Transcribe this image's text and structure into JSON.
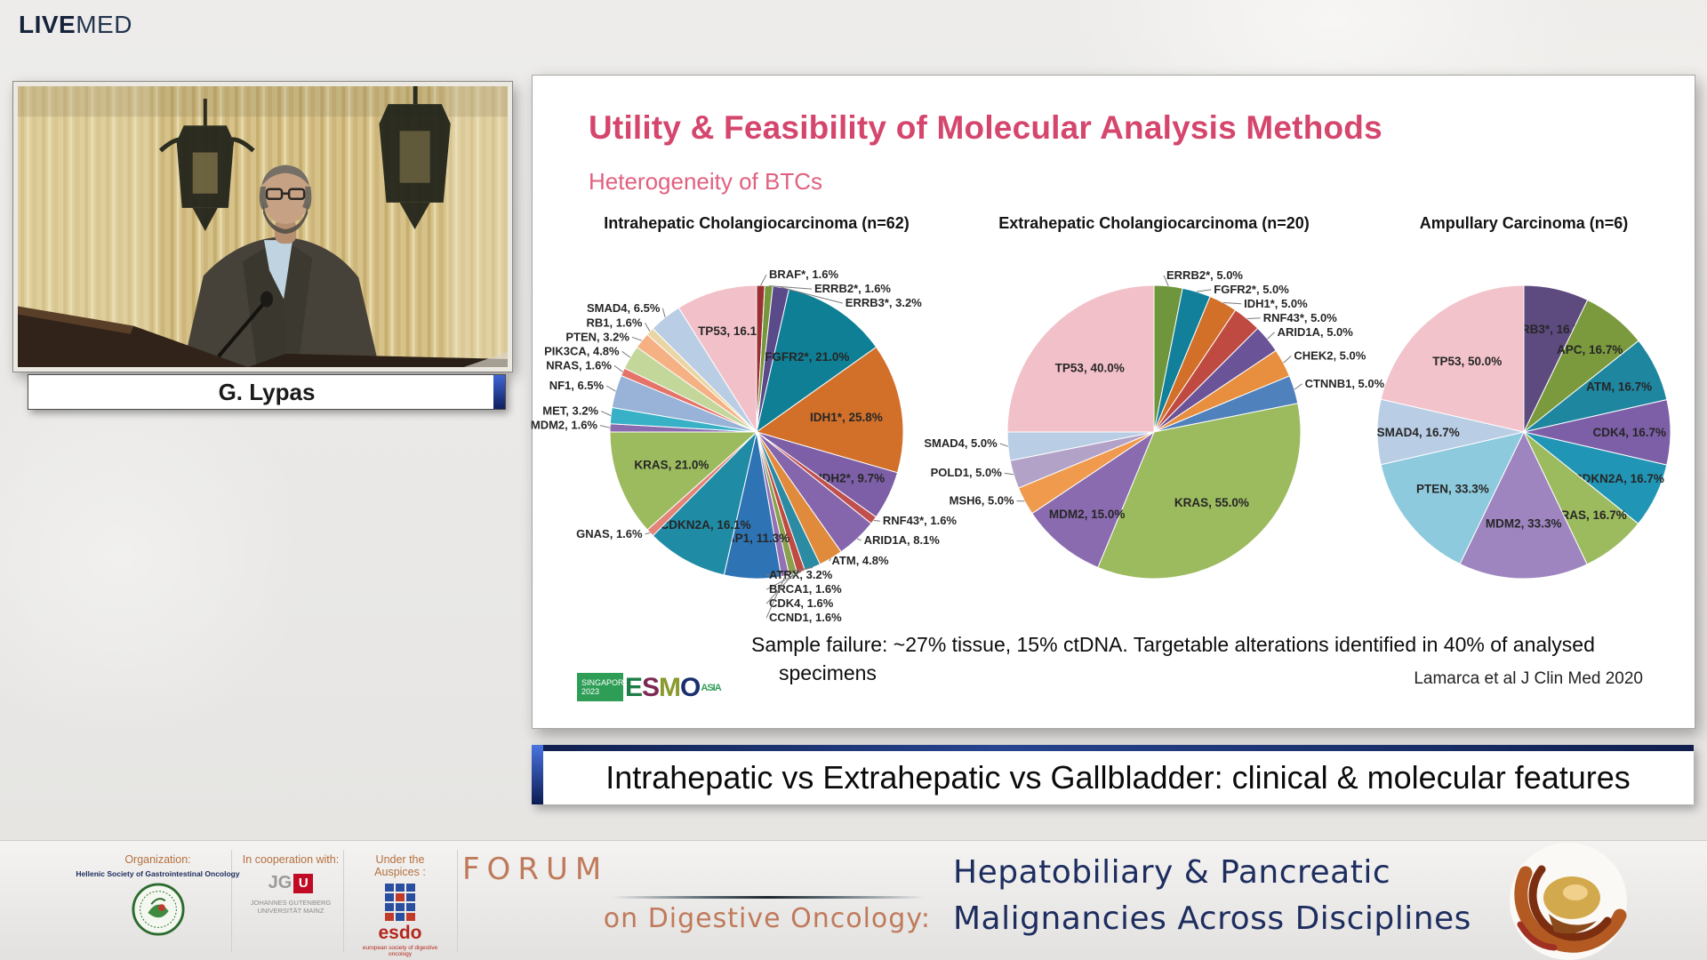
{
  "header": {
    "logo_bold": "LIVE",
    "logo_light": "MED"
  },
  "speaker": {
    "name": "G. Lypas"
  },
  "slide": {
    "title": "Utility & Feasibility of Molecular Analysis Methods",
    "subtitle": "Heterogeneity of BTCs",
    "footnote_line1": "Sample failure: ~27% tissue, 15% ctDNA. Targetable alterations identified in 40% of analysed",
    "footnote_line2": "specimens",
    "citation": "Lamarca et al J Clin Med 2020",
    "esmo_logo": {
      "place": "SINGAPORE",
      "year": "2023",
      "box_color": "#2e9e57",
      "letters": [
        {
          "ch": "E",
          "color": "#1e7d46"
        },
        {
          "ch": "S",
          "color": "#7c2a52"
        },
        {
          "ch": "M",
          "color": "#8a9a2e"
        },
        {
          "ch": "O",
          "color": "#1b2f6e"
        }
      ],
      "region": "ASIA",
      "region_color": "#2e9e57"
    }
  },
  "chart_data": [
    {
      "type": "pie",
      "title": "Intrahepatic Cholangiocarcinoma (n=62)",
      "n": 62,
      "start_angle": -90,
      "direction": "clockwise",
      "slices": [
        {
          "label": "BRAF*",
          "text": "BRAF*, 1.6%",
          "value": 1.6,
          "color": "#9c2f34"
        },
        {
          "label": "ERRB2*",
          "text": "ERRB2*, 1.6%",
          "value": 1.6,
          "color": "#76963c"
        },
        {
          "label": "ERRB3*",
          "text": "ERRB3*, 3.2%",
          "value": 3.2,
          "color": "#5a4a8a"
        },
        {
          "label": "FGFR2*",
          "text": "FGFR2*, 21.0%",
          "value": 21.0,
          "color": "#0f7f96"
        },
        {
          "label": "IDH1*",
          "text": "IDH1*, 25.8%",
          "value": 25.8,
          "color": "#d2702a"
        },
        {
          "label": "IDH2*",
          "text": "IDH2*, 9.7%",
          "value": 9.7,
          "color": "#7d5fa8"
        },
        {
          "label": "RNF43*",
          "text": "RNF43*, 1.6%",
          "value": 1.6,
          "color": "#c0504d"
        },
        {
          "label": "ARID1A",
          "text": "ARID1A, 8.1%",
          "value": 8.1,
          "color": "#8566ad"
        },
        {
          "label": "ATM",
          "text": "ATM, 4.8%",
          "value": 4.8,
          "color": "#e08a3c"
        },
        {
          "label": "ATRX",
          "text": "ATRX, 3.2%",
          "value": 3.2,
          "color": "#2b8ba3"
        },
        {
          "label": "BRCA1",
          "text": "BRCA1, 1.6%",
          "value": 1.6,
          "color": "#bf4a42"
        },
        {
          "label": "CDK4",
          "text": "CDK4, 1.6%",
          "value": 1.6,
          "color": "#89a14e"
        },
        {
          "label": "CCND1",
          "text": "CCND1, 1.6%",
          "value": 1.6,
          "color": "#9271b5"
        },
        {
          "label": "BAP1",
          "text": "BAP1, 11.3%",
          "value": 11.3,
          "color": "#2e74b5"
        },
        {
          "label": "CDKN2A",
          "text": "CDKN2A, 16.1%",
          "value": 16.1,
          "color": "#1f8ba5"
        },
        {
          "label": "GNAS",
          "text": "GNAS, 1.6%",
          "value": 1.6,
          "color": "#e2847a"
        },
        {
          "label": "KRAS",
          "text": "KRAS, 21.0%",
          "value": 21.0,
          "color": "#9cba5e"
        },
        {
          "label": "MDM2",
          "text": "MDM2, 1.6%",
          "value": 1.6,
          "color": "#8b6bb0"
        },
        {
          "label": "MET",
          "text": "MET, 3.2%",
          "value": 3.2,
          "color": "#38b1c7"
        },
        {
          "label": "NF1",
          "text": "NF1, 6.5%",
          "value": 6.5,
          "color": "#98b2d8"
        },
        {
          "label": "NRAS",
          "text": "NRAS, 1.6%",
          "value": 1.6,
          "color": "#e57368"
        },
        {
          "label": "PIK3CA",
          "text": "PIK3CA, 4.8%",
          "value": 4.8,
          "color": "#c4d79b"
        },
        {
          "label": "PTEN",
          "text": "PTEN, 3.2%",
          "value": 3.2,
          "color": "#f5b183"
        },
        {
          "label": "RB1",
          "text": "RB1, 1.6%",
          "value": 1.6,
          "color": "#ead6a5"
        },
        {
          "label": "SMAD4",
          "text": "SMAD4, 6.5%",
          "value": 6.5,
          "color": "#b9cde5"
        },
        {
          "label": "TP53",
          "text": "TP53, 16.1",
          "value": 16.1,
          "color": "#f2c0c8"
        }
      ]
    },
    {
      "type": "pie",
      "title": "Extrahepatic Cholangiocarcinoma (n=20)",
      "n": 20,
      "start_angle": -90,
      "direction": "clockwise",
      "slices": [
        {
          "label": "ERRB2*",
          "text": "ERRB2*, 5.0%",
          "value": 5,
          "color": "#6f963d"
        },
        {
          "label": "FGFR2*",
          "text": "FGFR2*, 5.0%",
          "value": 5,
          "color": "#12809a"
        },
        {
          "label": "IDH1*",
          "text": "IDH1*, 5.0%",
          "value": 5,
          "color": "#d2702a"
        },
        {
          "label": "RNF43*",
          "text": "RNF43*, 5.0%",
          "value": 5,
          "color": "#bf4a42"
        },
        {
          "label": "ARID1A",
          "text": "ARID1A, 5.0%",
          "value": 5,
          "color": "#6a5397"
        },
        {
          "label": "CHEK2",
          "text": "CHEK2, 5.0%",
          "value": 5,
          "color": "#e78f3e"
        },
        {
          "label": "CTNNB1",
          "text": "CTNNB1, 5.0%",
          "value": 5,
          "color": "#4f81bd"
        },
        {
          "label": "KRAS",
          "text": "KRAS, 55.0%",
          "value": 55,
          "color": "#9cba5e"
        },
        {
          "label": "MDM2",
          "text": "MDM2, 15.0%",
          "value": 15,
          "color": "#8b6bb0"
        },
        {
          "label": "MSH6",
          "text": "MSH6, 5.0%",
          "value": 5,
          "color": "#f09a4d"
        },
        {
          "label": "POLD1",
          "text": "POLD1, 5.0%",
          "value": 5,
          "color": "#b3a2c7"
        },
        {
          "label": "SMAD4",
          "text": "SMAD4, 5.0%",
          "value": 5,
          "color": "#b9cde5"
        },
        {
          "label": "TP53",
          "text": "TP53, 40.0%",
          "value": 40,
          "color": "#f2c0c8"
        }
      ]
    },
    {
      "type": "pie",
      "title": "Ampullary Carcinoma (n=6)",
      "n": 6,
      "start_angle": -90,
      "direction": "clockwise",
      "slices": [
        {
          "label": "ERRB3*",
          "text": "ERRB3*, 16.7%",
          "value": 16.7,
          "color": "#5d4a7e"
        },
        {
          "label": "APC",
          "text": "APC, 16.7%",
          "value": 16.7,
          "color": "#7a9a3d"
        },
        {
          "label": "ATM",
          "text": "ATM, 16.7%",
          "value": 16.7,
          "color": "#1f86a0"
        },
        {
          "label": "CDK4",
          "text": "CDK4, 16.7%",
          "value": 16.7,
          "color": "#7d5fa8"
        },
        {
          "label": "CDKN2A",
          "text": "CDKN2A, 16.7%",
          "value": 16.7,
          "color": "#2195b5"
        },
        {
          "label": "KRAS",
          "text": "KRAS, 16.7%",
          "value": 16.7,
          "color": "#9cba5e"
        },
        {
          "label": "MDM2",
          "text": "MDM2, 33.3%",
          "value": 33.3,
          "color": "#9e85c0"
        },
        {
          "label": "PTEN",
          "text": "PTEN, 33.3%",
          "value": 33.3,
          "color": "#8ecadd"
        },
        {
          "label": "SMAD4",
          "text": "SMAD4, 16.7%",
          "value": 16.7,
          "color": "#b9cde5"
        },
        {
          "label": "TP53",
          "text": "TP53, 50.0%",
          "value": 50,
          "color": "#f2c3ca"
        }
      ]
    }
  ],
  "banner": {
    "text": "Intrahepatic vs Extrahepatic vs Gallbladder: clinical & molecular features"
  },
  "footer": {
    "organization_label": "Organization:",
    "organization_name": "Hellenic Society of Gastrointestinal Oncology",
    "cooperation_label": "In cooperation with:",
    "university_line1": "JOHANNES GUTENBERG",
    "university_line2": "UNIVERSITÄT MAINZ",
    "jgu_letters": "JG",
    "jgu_u": "U",
    "auspices_label": "Under the Auspices :",
    "esdo_name": "esdo",
    "esdo_caption": "european society of digestive oncology",
    "forum": "FORUM",
    "forum_sub": "on Digestive Oncology:",
    "event_line1": "Hepatobiliary & Pancreatic",
    "event_line2": "Malignancies Across Disciplines"
  }
}
